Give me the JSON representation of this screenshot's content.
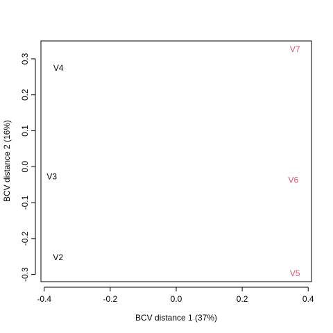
{
  "chart_data": {
    "type": "scatter",
    "title": "",
    "xlabel": "BCV distance 1 (37%)",
    "ylabel": "BCV distance 2 (16%)",
    "xlim": [
      -0.41,
      0.41
    ],
    "ylim": [
      -0.32,
      0.35
    ],
    "xticks": [
      -0.4,
      -0.2,
      0.0,
      0.2,
      0.4
    ],
    "xtick_labels": [
      "-0.4",
      "-0.2",
      "0.0",
      "0.2",
      "0.4"
    ],
    "yticks": [
      -0.3,
      -0.2,
      -0.1,
      0.0,
      0.1,
      0.2,
      0.3
    ],
    "ytick_labels": [
      "-0.3",
      "-0.2",
      "-0.1",
      "0.0",
      "0.1",
      "0.2",
      "0.3"
    ],
    "grid": false,
    "points": [
      {
        "label": "V4",
        "x": -0.357,
        "y": 0.275,
        "color": "#000000"
      },
      {
        "label": "V3",
        "x": -0.377,
        "y": -0.027,
        "color": "#000000"
      },
      {
        "label": "V2",
        "x": -0.358,
        "y": -0.252,
        "color": "#000000"
      },
      {
        "label": "V7",
        "x": 0.36,
        "y": 0.327,
        "color": "#DF536B"
      },
      {
        "label": "V6",
        "x": 0.355,
        "y": -0.037,
        "color": "#DF536B"
      },
      {
        "label": "V5",
        "x": 0.36,
        "y": -0.297,
        "color": "#DF536B"
      }
    ]
  }
}
